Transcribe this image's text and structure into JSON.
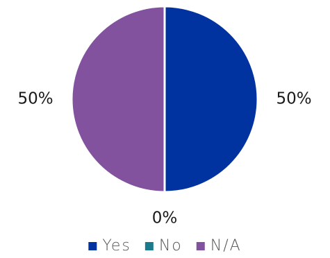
{
  "chart_data": {
    "type": "pie",
    "categories": [
      "Yes",
      "No",
      "N/A"
    ],
    "values": [
      50,
      0,
      50
    ],
    "value_labels": [
      "50%",
      "0%",
      "50%"
    ],
    "colors": [
      "#0033a0",
      "#1b7a8c",
      "#82529e"
    ],
    "legend": {
      "position": "bottom",
      "entries": [
        "Yes",
        "No",
        "N/A"
      ]
    }
  }
}
